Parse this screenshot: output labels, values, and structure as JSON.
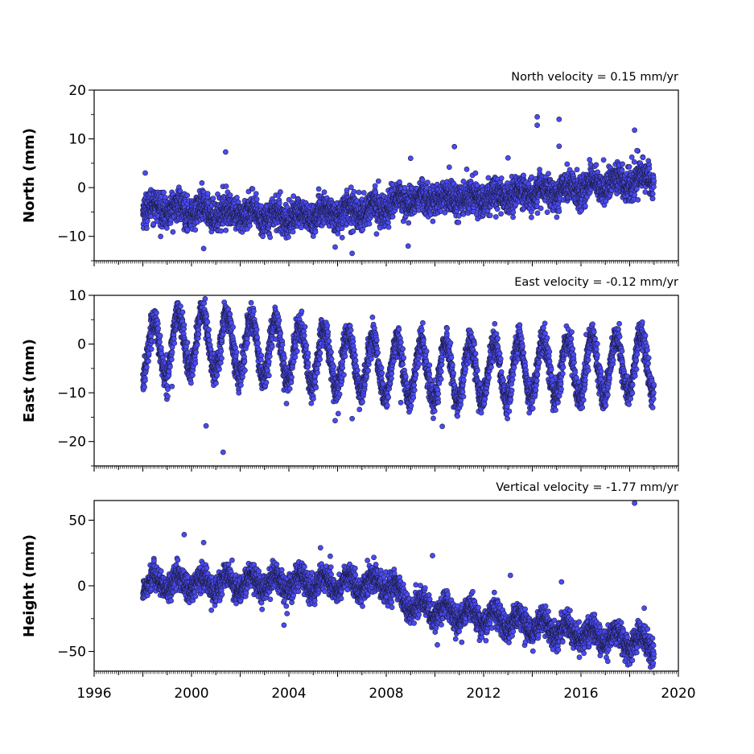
{
  "chart_data": [
    {
      "type": "scatter",
      "title": "North velocity = 0.15 mm/yr",
      "ylabel": "North (mm)",
      "xlim": [
        1996,
        2020
      ],
      "ylim": [
        -15,
        20
      ],
      "yticks": [
        -10,
        0,
        10,
        20
      ],
      "ytick_labels": [
        "−10",
        "0",
        "10",
        "20"
      ],
      "marker_color": "#4a4af2",
      "trend": [
        [
          1998.0,
          -4.0
        ],
        [
          2001.0,
          -5.0
        ],
        [
          2004.0,
          -6.0
        ],
        [
          2006.5,
          -5.0
        ],
        [
          2008.0,
          -4.0
        ],
        [
          2008.5,
          -2.5
        ],
        [
          2012.0,
          -2.0
        ],
        [
          2016.0,
          0.0
        ],
        [
          2019.0,
          2.0
        ]
      ],
      "seasonal_amplitude": 1.0,
      "scatter": 1.6,
      "outliers": [
        [
          1998.1,
          3.0
        ],
        [
          2001.4,
          7.3
        ],
        [
          2000.5,
          -12.5
        ],
        [
          2006.6,
          -13.5
        ],
        [
          2009.0,
          6.0
        ],
        [
          2010.8,
          8.4
        ],
        [
          2008.9,
          -12.0
        ],
        [
          2014.2,
          14.5
        ],
        [
          2014.2,
          12.8
        ],
        [
          2015.1,
          14.0
        ],
        [
          2015.1,
          8.5
        ],
        [
          2018.2,
          11.8
        ],
        [
          2018.3,
          7.6
        ],
        [
          2013.0,
          6.1
        ],
        [
          2007.6,
          -9.5
        ],
        [
          2005.9,
          -12.2
        ]
      ]
    },
    {
      "type": "scatter",
      "title": "East velocity = -0.12 mm/yr",
      "ylabel": "East (mm)",
      "xlim": [
        1996,
        2020
      ],
      "ylim": [
        -25,
        10
      ],
      "yticks": [
        -20,
        -10,
        0,
        10
      ],
      "ytick_labels": [
        "−20",
        "−10",
        "0",
        "10"
      ],
      "marker_color": "#4a4af2",
      "trend": [
        [
          1998.0,
          -2.0
        ],
        [
          2000.0,
          1.0
        ],
        [
          2003.0,
          -1.0
        ],
        [
          2008.0,
          -5.0
        ],
        [
          2011.0,
          -6.0
        ],
        [
          2015.0,
          -5.0
        ],
        [
          2019.0,
          -4.0
        ]
      ],
      "seasonal_amplitude": 6.0,
      "scatter": 1.5,
      "outliers": [
        [
          2001.3,
          -22.2
        ],
        [
          2000.6,
          -16.8
        ],
        [
          1999.2,
          -8.7
        ],
        [
          2003.9,
          -12.2
        ],
        [
          2005.9,
          -15.7
        ],
        [
          2006.6,
          -15.3
        ],
        [
          2010.3,
          -16.9
        ],
        [
          2008.6,
          -12.0
        ]
      ]
    },
    {
      "type": "scatter",
      "title": "Vertical velocity = -1.77 mm/yr",
      "ylabel": "Height (mm)",
      "xlim": [
        1996,
        2020
      ],
      "ylim": [
        -65,
        65
      ],
      "yticks": [
        -50,
        0,
        50
      ],
      "ytick_labels": [
        "−50",
        "0",
        "50"
      ],
      "marker_color": "#4a4af2",
      "trend": [
        [
          1998.0,
          2.0
        ],
        [
          2008.0,
          2.0
        ],
        [
          2009.0,
          -15.0
        ],
        [
          2019.0,
          -45.0
        ]
      ],
      "seasonal_amplitude": 6.0,
      "scatter": 5.0,
      "outliers": [
        [
          1999.7,
          39.0
        ],
        [
          2000.5,
          33.0
        ],
        [
          2005.3,
          29.0
        ],
        [
          2009.9,
          23.0
        ],
        [
          2013.1,
          8.0
        ],
        [
          2015.2,
          3.0
        ],
        [
          2018.2,
          63.0
        ],
        [
          2018.6,
          -17.0
        ],
        [
          2003.8,
          -30.0
        ],
        [
          2010.1,
          -45.0
        ],
        [
          2011.1,
          -43.0
        ]
      ]
    }
  ],
  "x_axis": {
    "ticks": [
      1996,
      2000,
      2004,
      2008,
      2012,
      2016,
      2020
    ],
    "tick_labels": [
      "1996",
      "2000",
      "2004",
      "2008",
      "2012",
      "2016",
      "2020"
    ],
    "minor_ticks_per_year": 12
  }
}
